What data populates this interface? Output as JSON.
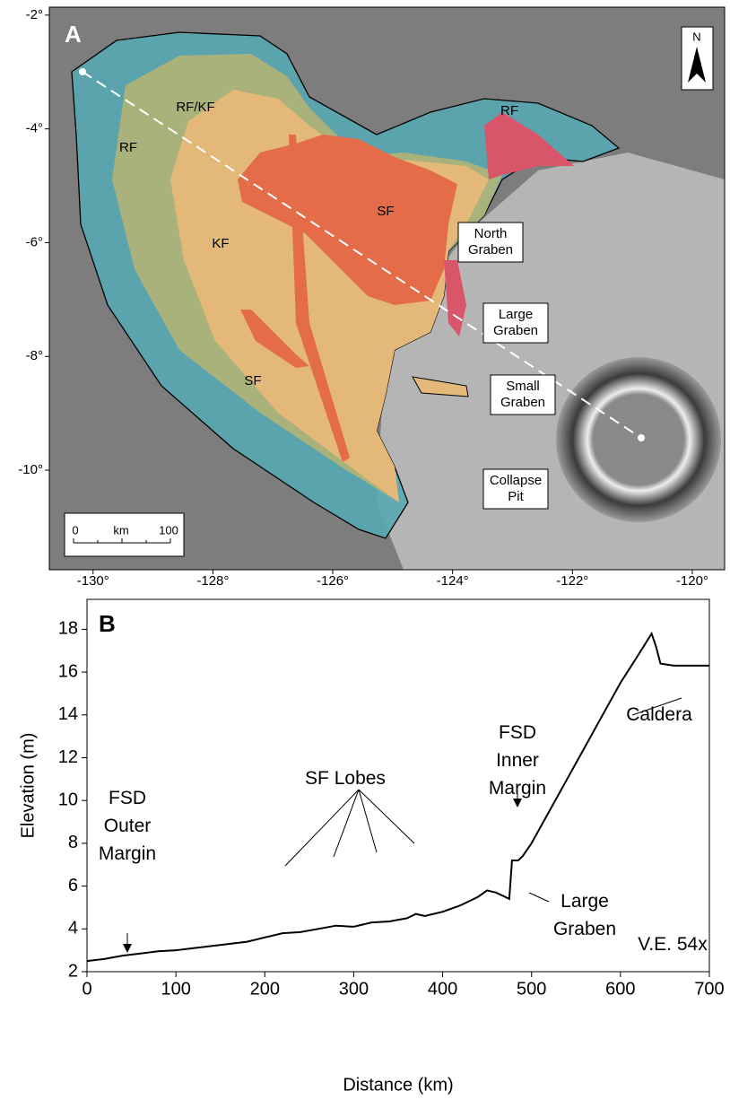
{
  "chart_data": [
    {
      "type": "map",
      "panel_label": "A",
      "xlim": [
        -130.73,
        -119.46
      ],
      "ylim": [
        -11.75,
        -1.86
      ],
      "xticks": [
        {
          "value": -130,
          "label": "-130°"
        },
        {
          "value": -128,
          "label": "-128°"
        },
        {
          "value": -126,
          "label": "-126°"
        },
        {
          "value": -124,
          "label": "-124°"
        },
        {
          "value": -122,
          "label": "-122°"
        },
        {
          "value": -120,
          "label": "-120°"
        }
      ],
      "yticks": [
        {
          "value": -2,
          "label": "-2°"
        },
        {
          "value": -4,
          "label": "-4°"
        },
        {
          "value": -6,
          "label": "-6°"
        },
        {
          "value": -8,
          "label": "-8°"
        },
        {
          "value": -10,
          "label": "-10°"
        }
      ],
      "unit_labels": [
        "RF",
        "RF/KF",
        "RF",
        "KF",
        "SF",
        "SF"
      ],
      "boxed_labels": [
        [
          "North",
          "Graben"
        ],
        [
          "Large",
          "Graben"
        ],
        [
          "Small",
          "Graben"
        ],
        [
          "Collapse",
          "Pit"
        ]
      ],
      "scale_bar": [
        "0",
        "km",
        "100"
      ],
      "north": "N"
    },
    {
      "type": "line",
      "panel_label": "B",
      "xlabel": "Distance (km)",
      "ylabel": "Elevation (m)",
      "xlim": [
        0,
        700
      ],
      "ylim": [
        2,
        19.4
      ],
      "xticks": [
        0,
        100,
        200,
        300,
        400,
        500,
        600,
        700
      ],
      "yticks": [
        2,
        4,
        6,
        8,
        10,
        12,
        14,
        16,
        18
      ],
      "x": [
        0,
        20,
        40,
        60,
        80,
        100,
        120,
        140,
        160,
        180,
        200,
        220,
        240,
        260,
        280,
        300,
        320,
        340,
        360,
        370,
        380,
        400,
        420,
        440,
        450,
        460,
        470,
        475,
        478,
        485,
        490,
        500,
        520,
        540,
        560,
        580,
        600,
        620,
        635,
        640,
        645,
        660,
        680,
        700
      ],
      "series": [
        {
          "color": "#000000",
          "values": [
            2.5,
            2.6,
            2.75,
            2.85,
            2.95,
            3.0,
            3.1,
            3.2,
            3.3,
            3.4,
            3.6,
            3.8,
            3.85,
            4.0,
            4.15,
            4.1,
            4.3,
            4.35,
            4.5,
            4.7,
            4.6,
            4.8,
            5.1,
            5.5,
            5.8,
            5.7,
            5.5,
            5.4,
            7.2,
            7.2,
            7.4,
            8.0,
            9.5,
            11.0,
            12.5,
            14.0,
            15.5,
            16.8,
            17.8,
            17.2,
            16.4,
            16.3,
            16.3,
            16.3
          ]
        }
      ],
      "annotations": [
        [
          "FSD",
          "Outer",
          "Margin"
        ],
        [
          "SF Lobes"
        ],
        [
          "FSD",
          "Inner",
          "Margin"
        ],
        [
          "Large",
          "Graben"
        ],
        [
          "Caldera"
        ],
        [
          "V.E. 54x"
        ]
      ]
    }
  ]
}
